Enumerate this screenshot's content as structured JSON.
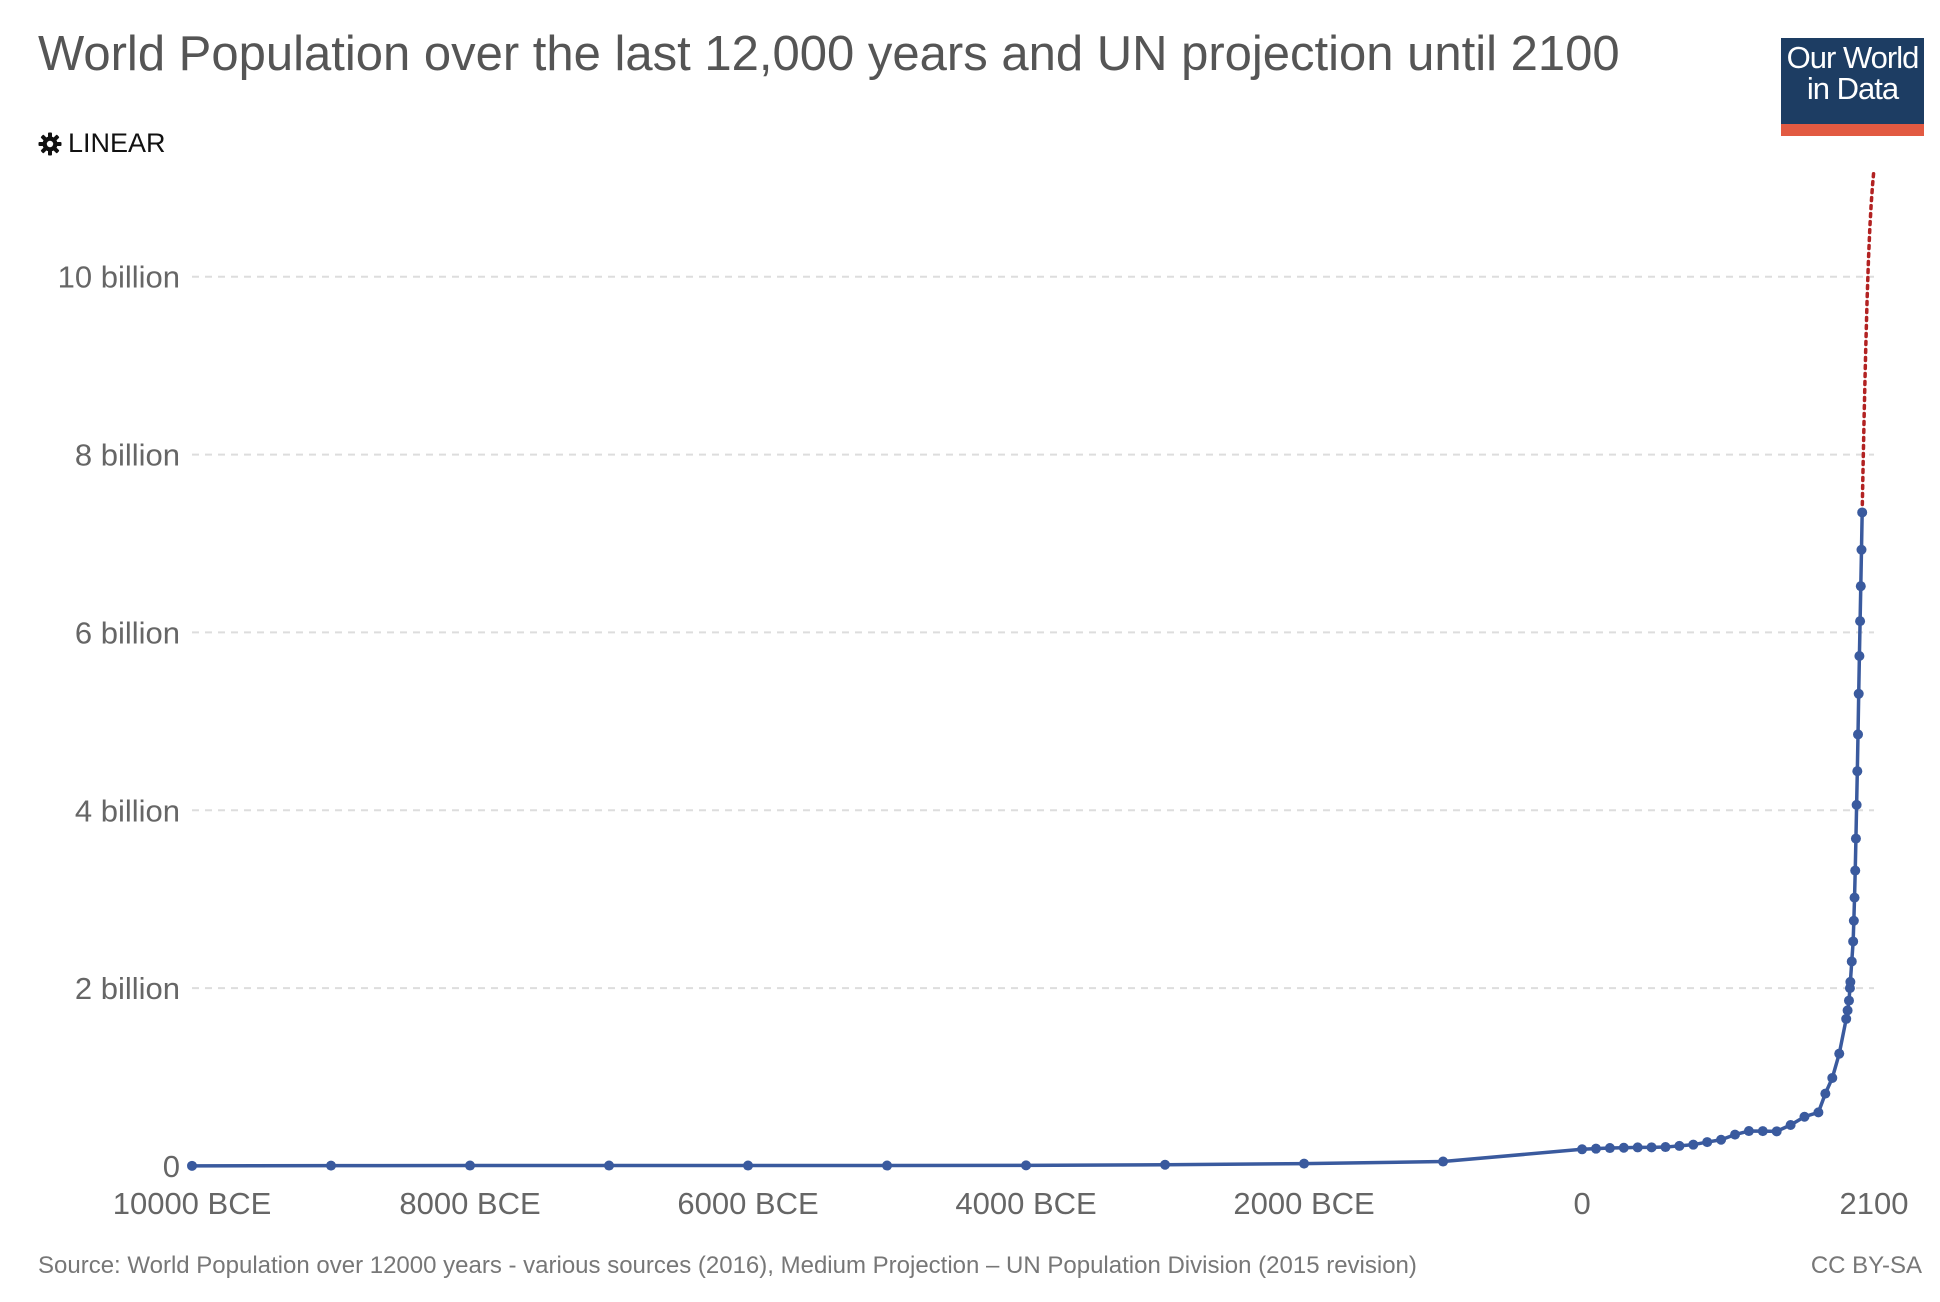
{
  "header": {
    "title": "World Population over the last 12,000 years and UN projection until 2100",
    "logo_line1": "Our World",
    "logo_line2": "in Data"
  },
  "controls": {
    "scale_label": "LINEAR",
    "scale_icon": "gear-icon"
  },
  "footer": {
    "source": "Source: World Population over 12000 years - various sources (2016), Medium Projection – UN Population Division (2015 revision)",
    "license": "CC BY-SA"
  },
  "colors": {
    "historical": "#3a5a9e",
    "projection": "#b22222",
    "grid": "#dddddd",
    "logo_bg": "#1d3d63",
    "logo_accent": "#e25a42"
  },
  "chart_data": {
    "type": "line",
    "title": "World Population over the last 12,000 years and UN projection until 2100",
    "xlabel": "",
    "ylabel": "",
    "xlim": [
      -10000,
      2100
    ],
    "ylim": [
      0,
      11200000000
    ],
    "x_ticks": [
      {
        "value": -10000,
        "label": "10000 BCE"
      },
      {
        "value": -8000,
        "label": "8000 BCE"
      },
      {
        "value": -6000,
        "label": "6000 BCE"
      },
      {
        "value": -4000,
        "label": "4000 BCE"
      },
      {
        "value": -2000,
        "label": "2000 BCE"
      },
      {
        "value": 0,
        "label": "0"
      },
      {
        "value": 2100,
        "label": "2100"
      }
    ],
    "y_ticks": [
      {
        "value": 0,
        "label": "0"
      },
      {
        "value": 2000000000,
        "label": "2 billion"
      },
      {
        "value": 4000000000,
        "label": "4 billion"
      },
      {
        "value": 6000000000,
        "label": "6 billion"
      },
      {
        "value": 8000000000,
        "label": "8 billion"
      },
      {
        "value": 10000000000,
        "label": "10 billion"
      }
    ],
    "grid": "horizontal-dashed",
    "series": [
      {
        "key": "historical",
        "style": "solid-with-markers",
        "points": [
          [
            -10000,
            2000000
          ],
          [
            -9000,
            4000000
          ],
          [
            -8000,
            5000000
          ],
          [
            -7000,
            5000000
          ],
          [
            -6000,
            5000000
          ],
          [
            -5000,
            5000000
          ],
          [
            -4000,
            7000000
          ],
          [
            -3000,
            14000000
          ],
          [
            -2000,
            27000000
          ],
          [
            -1000,
            50000000
          ],
          [
            0,
            188000000
          ],
          [
            100,
            195000000
          ],
          [
            200,
            202000000
          ],
          [
            300,
            205000000
          ],
          [
            400,
            209000000
          ],
          [
            500,
            210000000
          ],
          [
            600,
            213000000
          ],
          [
            700,
            226000000
          ],
          [
            800,
            240000000
          ],
          [
            900,
            269000000
          ],
          [
            1000,
            295000000
          ],
          [
            1100,
            353000000
          ],
          [
            1200,
            393000000
          ],
          [
            1300,
            392000000
          ],
          [
            1400,
            390000000
          ],
          [
            1500,
            461000000
          ],
          [
            1600,
            554000000
          ],
          [
            1700,
            603000000
          ],
          [
            1750,
            814000000
          ],
          [
            1800,
            990000000
          ],
          [
            1850,
            1263000000
          ],
          [
            1900,
            1654000000
          ],
          [
            1910,
            1750000000
          ],
          [
            1920,
            1860000000
          ],
          [
            1927,
            2000000000
          ],
          [
            1930,
            2070000000
          ],
          [
            1940,
            2300000000
          ],
          [
            1950,
            2525000000
          ],
          [
            1955,
            2758000000
          ],
          [
            1960,
            3018000000
          ],
          [
            1965,
            3322000000
          ],
          [
            1970,
            3682000000
          ],
          [
            1975,
            4061000000
          ],
          [
            1980,
            4440000000
          ],
          [
            1985,
            4853000000
          ],
          [
            1990,
            5310000000
          ],
          [
            1995,
            5735000000
          ],
          [
            2000,
            6127000000
          ],
          [
            2005,
            6520000000
          ],
          [
            2010,
            6930000000
          ],
          [
            2015,
            7349000000
          ]
        ]
      },
      {
        "key": "projection",
        "style": "dotted",
        "points": [
          [
            2015,
            7349000000
          ],
          [
            2020,
            7758000000
          ],
          [
            2030,
            8501000000
          ],
          [
            2040,
            9157000000
          ],
          [
            2050,
            9725000000
          ],
          [
            2060,
            10184000000
          ],
          [
            2070,
            10548000000
          ],
          [
            2080,
            10824000000
          ],
          [
            2090,
            11040000000
          ],
          [
            2100,
            11213000000
          ]
        ]
      }
    ]
  }
}
